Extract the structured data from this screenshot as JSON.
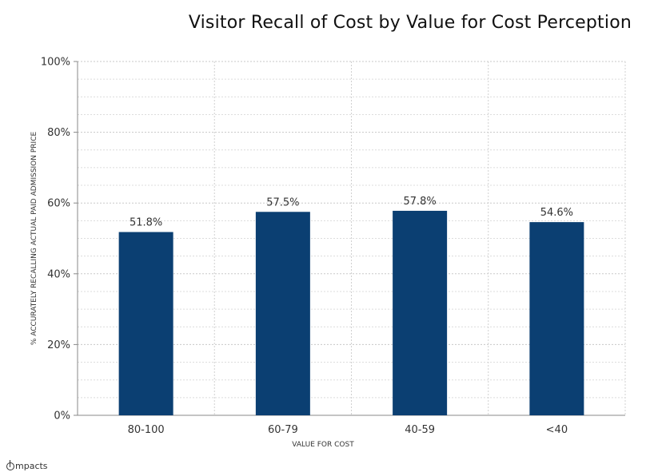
{
  "chart_data": {
    "type": "bar",
    "title": "Visitor Recall of Cost by Value for Cost Perception",
    "xlabel": "VALUE FOR COST",
    "ylabel": "% ACCURATELY RECALLING ACTUAL PAID ADMISSION PRICE",
    "categories": [
      "80-100",
      "60-79",
      "40-59",
      "<40"
    ],
    "values": [
      51.8,
      57.5,
      57.8,
      54.6
    ],
    "data_labels": [
      "51.8%",
      "57.5%",
      "57.8%",
      "54.6%"
    ],
    "ylim": [
      0,
      100
    ],
    "yticks": [
      0,
      20,
      40,
      60,
      80,
      100
    ],
    "ytick_labels": [
      "0%",
      "20%",
      "40%",
      "60%",
      "80%",
      "100%"
    ],
    "grid": true,
    "bar_color": "#0b3f72"
  },
  "logo": {
    "text": "mpacts"
  }
}
